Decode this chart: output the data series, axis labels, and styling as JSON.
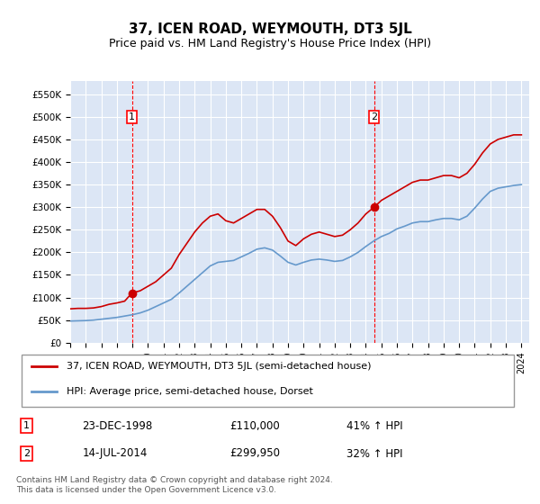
{
  "title": "37, ICEN ROAD, WEYMOUTH, DT3 5JL",
  "subtitle": "Price paid vs. HM Land Registry's House Price Index (HPI)",
  "background_color": "#dce6f5",
  "plot_bg_color": "#dce6f5",
  "red_line_label": "37, ICEN ROAD, WEYMOUTH, DT3 5JL (semi-detached house)",
  "blue_line_label": "HPI: Average price, semi-detached house, Dorset",
  "transaction1_label": "1",
  "transaction1_date": "23-DEC-1998",
  "transaction1_price": "£110,000",
  "transaction1_pct": "41% ↑ HPI",
  "transaction1_year": 1998.97,
  "transaction2_label": "2",
  "transaction2_date": "14-JUL-2014",
  "transaction2_price": "£299,950",
  "transaction2_pct": "32% ↑ HPI",
  "transaction2_year": 2014.53,
  "ylim_min": 0,
  "ylim_max": 580000,
  "yticks": [
    0,
    50000,
    100000,
    150000,
    200000,
    250000,
    300000,
    350000,
    400000,
    450000,
    500000,
    550000
  ],
  "ytick_labels": [
    "£0",
    "£50K",
    "£100K",
    "£150K",
    "£200K",
    "£250K",
    "£300K",
    "£350K",
    "£400K",
    "£450K",
    "£500K",
    "£550K"
  ],
  "footer": "Contains HM Land Registry data © Crown copyright and database right 2024.\nThis data is licensed under the Open Government Licence v3.0.",
  "red_x": [
    1995.0,
    1995.5,
    1996.0,
    1996.5,
    1997.0,
    1997.5,
    1998.0,
    1998.5,
    1998.97,
    1999.5,
    2000.0,
    2000.5,
    2001.0,
    2001.5,
    2002.0,
    2002.5,
    2003.0,
    2003.5,
    2004.0,
    2004.5,
    2005.0,
    2005.5,
    2006.0,
    2006.5,
    2007.0,
    2007.5,
    2008.0,
    2008.5,
    2009.0,
    2009.5,
    2010.0,
    2010.5,
    2011.0,
    2011.5,
    2012.0,
    2012.5,
    2013.0,
    2013.5,
    2014.0,
    2014.53,
    2015.0,
    2015.5,
    2016.0,
    2016.5,
    2017.0,
    2017.5,
    2018.0,
    2018.5,
    2019.0,
    2019.5,
    2020.0,
    2020.5,
    2021.0,
    2021.5,
    2022.0,
    2022.5,
    2023.0,
    2023.5,
    2024.0
  ],
  "red_y": [
    75000,
    76000,
    76000,
    77000,
    80000,
    85000,
    88000,
    92000,
    110000,
    115000,
    125000,
    135000,
    150000,
    165000,
    195000,
    220000,
    245000,
    265000,
    280000,
    285000,
    270000,
    265000,
    275000,
    285000,
    295000,
    295000,
    280000,
    255000,
    225000,
    215000,
    230000,
    240000,
    245000,
    240000,
    235000,
    238000,
    250000,
    265000,
    285000,
    299950,
    315000,
    325000,
    335000,
    345000,
    355000,
    360000,
    360000,
    365000,
    370000,
    370000,
    365000,
    375000,
    395000,
    420000,
    440000,
    450000,
    455000,
    460000,
    460000
  ],
  "blue_x": [
    1995.0,
    1995.5,
    1996.0,
    1996.5,
    1997.0,
    1997.5,
    1998.0,
    1998.5,
    1999.0,
    1999.5,
    2000.0,
    2000.5,
    2001.0,
    2001.5,
    2002.0,
    2002.5,
    2003.0,
    2003.5,
    2004.0,
    2004.5,
    2005.0,
    2005.5,
    2006.0,
    2006.5,
    2007.0,
    2007.5,
    2008.0,
    2008.5,
    2009.0,
    2009.5,
    2010.0,
    2010.5,
    2011.0,
    2011.5,
    2012.0,
    2012.5,
    2013.0,
    2013.5,
    2014.0,
    2014.5,
    2015.0,
    2015.5,
    2016.0,
    2016.5,
    2017.0,
    2017.5,
    2018.0,
    2018.5,
    2019.0,
    2019.5,
    2020.0,
    2020.5,
    2021.0,
    2021.5,
    2022.0,
    2022.5,
    2023.0,
    2023.5,
    2024.0
  ],
  "blue_y": [
    48000,
    48500,
    49000,
    50000,
    52000,
    54000,
    56000,
    59000,
    62000,
    66000,
    72000,
    80000,
    88000,
    96000,
    110000,
    125000,
    140000,
    155000,
    170000,
    178000,
    180000,
    182000,
    190000,
    198000,
    207000,
    210000,
    205000,
    192000,
    178000,
    172000,
    178000,
    183000,
    185000,
    183000,
    180000,
    182000,
    190000,
    200000,
    213000,
    225000,
    235000,
    242000,
    252000,
    258000,
    265000,
    268000,
    268000,
    272000,
    275000,
    275000,
    272000,
    280000,
    298000,
    318000,
    335000,
    342000,
    345000,
    348000,
    350000
  ]
}
